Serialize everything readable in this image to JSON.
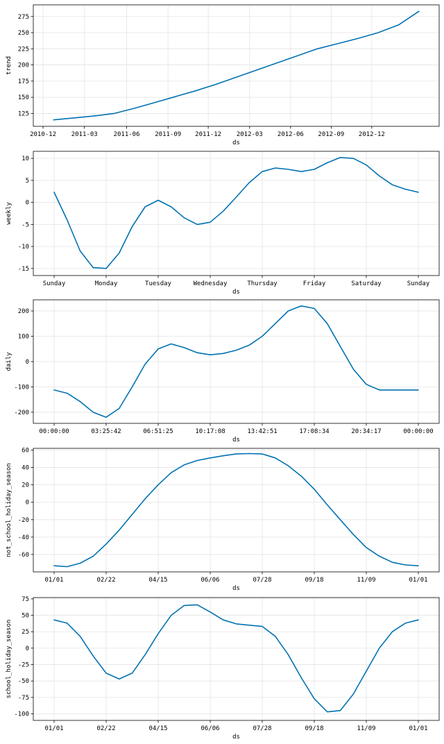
{
  "chart_data": [
    {
      "type": "line",
      "xlabel": "ds",
      "ylabel": "trend",
      "xticks": [
        "2010-12",
        "2011-03",
        "2011-06",
        "2011-09",
        "2011-12",
        "2012-03",
        "2012-06",
        "2012-09",
        "2012-12"
      ],
      "yticks": [
        "125",
        "150",
        "175",
        "200",
        "225",
        "250",
        "275"
      ],
      "xlim": [
        0,
        10
      ],
      "ylim": [
        105,
        293
      ],
      "tick_x": [
        0.24,
        1.26,
        2.3,
        3.32,
        4.31,
        5.33,
        6.34,
        7.34,
        8.34
      ],
      "tick_y": [
        125,
        150,
        175,
        200,
        225,
        250,
        275
      ],
      "x": [
        0.5,
        1.0,
        1.5,
        2.0,
        2.5,
        3.0,
        3.5,
        4.0,
        4.5,
        5.0,
        5.5,
        6.0,
        6.5,
        7.0,
        7.5,
        8.0,
        8.5,
        9.0,
        9.5
      ],
      "y": [
        115,
        118,
        121,
        125,
        133,
        142,
        151,
        160,
        170,
        181,
        192,
        203,
        214,
        225,
        233,
        241,
        250,
        262,
        283
      ],
      "color": "#0072b2",
      "grid": true
    },
    {
      "type": "line",
      "xlabel": "ds",
      "ylabel": "weekly",
      "xticks": [
        "Sunday",
        "Monday",
        "Tuesday",
        "Wednesday",
        "Thursday",
        "Friday",
        "Saturday",
        "Sunday"
      ],
      "yticks": [
        "-15",
        "-10",
        "-5",
        "0",
        "5",
        "10"
      ],
      "xlim": [
        -0.4,
        7.4
      ],
      "ylim": [
        -16.6,
        11.6
      ],
      "tick_x": [
        0,
        1,
        2,
        3,
        4,
        5,
        6,
        7
      ],
      "tick_y": [
        -15,
        -10,
        -5,
        0,
        5,
        10
      ],
      "x": [
        0,
        0.25,
        0.5,
        0.75,
        1.0,
        1.25,
        1.5,
        1.75,
        2.0,
        2.25,
        2.5,
        2.75,
        3.0,
        3.25,
        3.5,
        3.75,
        4.0,
        4.25,
        4.5,
        4.75,
        5.0,
        5.25,
        5.5,
        5.75,
        6.0,
        6.25,
        6.5,
        6.75,
        7.0
      ],
      "y": [
        2.3,
        -4.0,
        -11.0,
        -14.8,
        -15.0,
        -11.5,
        -5.5,
        -1.0,
        0.5,
        -1.0,
        -3.5,
        -5.0,
        -4.5,
        -2.0,
        1.2,
        4.5,
        7.0,
        7.8,
        7.5,
        7.0,
        7.5,
        9.0,
        10.2,
        10.0,
        8.5,
        6.0,
        4.0,
        3.0,
        2.3
      ],
      "color": "#0072b2",
      "grid": true
    },
    {
      "type": "line",
      "xlabel": "ds",
      "ylabel": "daily",
      "xticks": [
        "00:00:00",
        "03:25:42",
        "06:51:25",
        "10:17:08",
        "13:42:51",
        "17:08:34",
        "20:34:17",
        "00:00:00"
      ],
      "yticks": [
        "-200",
        "-100",
        "0",
        "100",
        "200"
      ],
      "xlim": [
        -0.4,
        7.4
      ],
      "ylim": [
        -244,
        244
      ],
      "tick_x": [
        0,
        1,
        2,
        3,
        4,
        5,
        6,
        7
      ],
      "tick_y": [
        -200,
        -100,
        0,
        100,
        200
      ],
      "x": [
        0,
        0.25,
        0.5,
        0.75,
        1.0,
        1.25,
        1.5,
        1.75,
        2.0,
        2.25,
        2.5,
        2.75,
        3.0,
        3.25,
        3.5,
        3.75,
        4.0,
        4.25,
        4.5,
        4.75,
        5.0,
        5.25,
        5.5,
        5.75,
        6.0,
        6.25,
        6.5,
        6.75,
        7.0
      ],
      "y": [
        -112,
        -125,
        -158,
        -200,
        -220,
        -185,
        -100,
        -10,
        50,
        70,
        55,
        35,
        27,
        32,
        45,
        65,
        100,
        150,
        200,
        220,
        210,
        150,
        60,
        -30,
        -90,
        -112,
        -112,
        -112,
        -112
      ],
      "color": "#0072b2",
      "grid": true
    },
    {
      "type": "line",
      "xlabel": "ds",
      "ylabel": "not_school_holiday_season",
      "xticks": [
        "01/01",
        "02/22",
        "04/15",
        "06/06",
        "07/28",
        "09/18",
        "11/09",
        "01/01"
      ],
      "yticks": [
        "-60",
        "-40",
        "-20",
        "0",
        "20",
        "40",
        "60"
      ],
      "xlim": [
        -0.4,
        7.4
      ],
      "ylim": [
        -80,
        62
      ],
      "tick_x": [
        0,
        1,
        2,
        3,
        4,
        5,
        6,
        7
      ],
      "tick_y": [
        -60,
        -40,
        -20,
        0,
        20,
        40,
        60
      ],
      "x": [
        0,
        0.25,
        0.5,
        0.75,
        1.0,
        1.25,
        1.5,
        1.75,
        2.0,
        2.25,
        2.5,
        2.75,
        3.0,
        3.25,
        3.5,
        3.75,
        4.0,
        4.25,
        4.5,
        4.75,
        5.0,
        5.25,
        5.5,
        5.75,
        6.0,
        6.25,
        6.5,
        6.75,
        7.0
      ],
      "y": [
        -73,
        -74,
        -70,
        -62,
        -48,
        -32,
        -14,
        4,
        20,
        34,
        43,
        48,
        51,
        53.5,
        55.5,
        56,
        55.5,
        51,
        42,
        30,
        15,
        -3,
        -20,
        -37,
        -52,
        -62,
        -69,
        -72,
        -73
      ],
      "color": "#0072b2",
      "grid": true
    },
    {
      "type": "line",
      "xlabel": "ds",
      "ylabel": "school_holiday_season",
      "xticks": [
        "01/01",
        "02/22",
        "04/15",
        "06/06",
        "07/28",
        "09/18",
        "11/09",
        "01/01"
      ],
      "yticks": [
        "-100",
        "-75",
        "-50",
        "-25",
        "0",
        "25",
        "50",
        "75"
      ],
      "xlim": [
        -0.4,
        7.4
      ],
      "ylim": [
        -110,
        77
      ],
      "tick_x": [
        0,
        1,
        2,
        3,
        4,
        5,
        6,
        7
      ],
      "tick_y": [
        -100,
        -75,
        -50,
        -25,
        0,
        25,
        50,
        75
      ],
      "x": [
        0,
        0.25,
        0.5,
        0.75,
        1.0,
        1.25,
        1.5,
        1.75,
        2.0,
        2.25,
        2.5,
        2.75,
        3.0,
        3.25,
        3.5,
        3.75,
        4.0,
        4.25,
        4.5,
        4.75,
        5.0,
        5.25,
        5.5,
        5.75,
        6.0,
        6.25,
        6.5,
        6.75,
        7.0
      ],
      "y": [
        43,
        38,
        18,
        -12,
        -38,
        -47,
        -38,
        -10,
        22,
        50,
        65,
        66,
        55,
        43,
        37,
        35,
        33,
        18,
        -10,
        -45,
        -77,
        -97,
        -95,
        -70,
        -35,
        0,
        25,
        38,
        43
      ],
      "color": "#0072b2",
      "grid": true
    }
  ]
}
